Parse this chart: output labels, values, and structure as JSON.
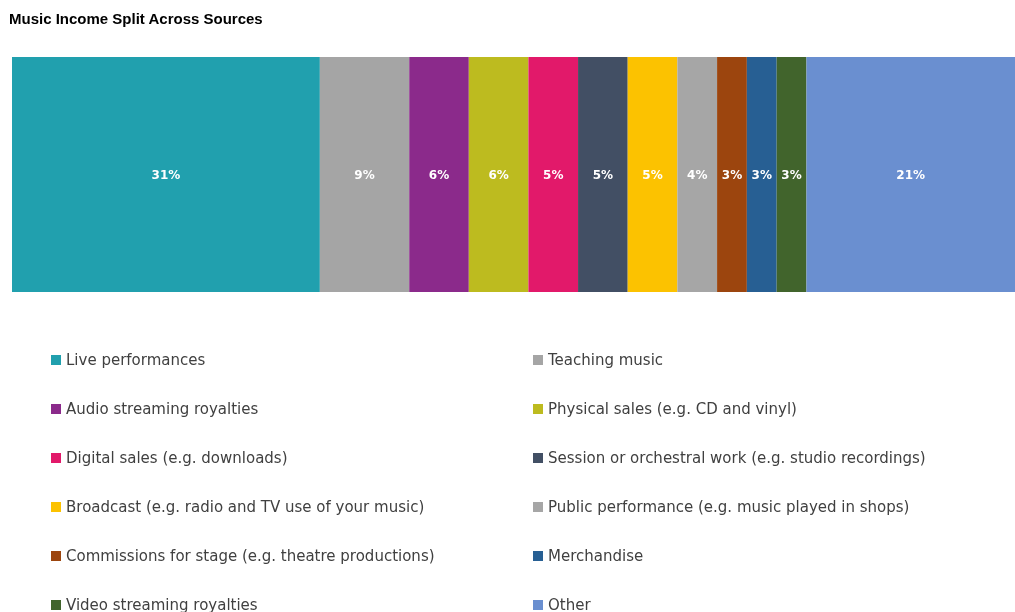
{
  "chart_data": {
    "type": "bar",
    "title": "Music Income Split Across Sources",
    "orientation": "horizontal",
    "stacked": true,
    "categories": [
      null
    ],
    "legend": "bottom",
    "series": [
      {
        "name": "Live performances",
        "color": "#21a0ae",
        "values": [
          31
        ],
        "value_labels": [
          "31%"
        ]
      },
      {
        "name": "Teaching music",
        "color": "#a5a5a5",
        "values": [
          9
        ],
        "value_labels": [
          "9%"
        ]
      },
      {
        "name": "Audio streaming royalties",
        "color": "#8b2a8b",
        "values": [
          6
        ],
        "value_labels": [
          "6%"
        ]
      },
      {
        "name": "Physical sales (e.g. CD and vinyl)",
        "color": "#bdbb1f",
        "values": [
          6
        ],
        "value_labels": [
          "6%"
        ]
      },
      {
        "name": "Digital sales (e.g. downloads)",
        "color": "#e2196a",
        "values": [
          5
        ],
        "value_labels": [
          "5%"
        ]
      },
      {
        "name": "Session or orchestral work (e.g. studio recordings)",
        "color": "#424f64",
        "values": [
          5
        ],
        "value_labels": [
          "5%"
        ]
      },
      {
        "name": "Broadcast (e.g. radio and TV use of your music)",
        "color": "#fcc200",
        "values": [
          5
        ],
        "value_labels": [
          "5%"
        ]
      },
      {
        "name": "Public performance (e.g. music played in shops)",
        "color": "#a6a6a6",
        "values": [
          4
        ],
        "value_labels": [
          "4%"
        ]
      },
      {
        "name": "Commissions for stage (e.g. theatre productions)",
        "color": "#9c450e",
        "values": [
          3
        ],
        "value_labels": [
          "3%"
        ]
      },
      {
        "name": "Merchandise",
        "color": "#275f93",
        "values": [
          3
        ],
        "value_labels": [
          "3%"
        ]
      },
      {
        "name": "Video streaming royalties",
        "color": "#41642c",
        "values": [
          3
        ],
        "value_labels": [
          "3%"
        ]
      },
      {
        "name": "Other",
        "color": "#6a8fd0",
        "values": [
          21
        ],
        "value_labels": [
          "21%"
        ]
      }
    ]
  }
}
